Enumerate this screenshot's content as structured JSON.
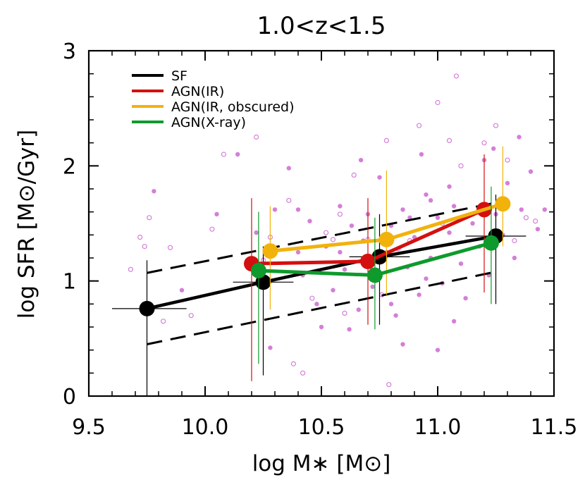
{
  "chart_data": {
    "type": "scatter",
    "title": "1.0<z<1.5",
    "xlabel": "log M∗ [M⊙]",
    "ylabel": "log SFR [M⊙/Gyr]",
    "xlim": [
      9.5,
      11.5
    ],
    "ylim": [
      0,
      3
    ],
    "x_ticks": [
      "9.5",
      "10.0",
      "10.5",
      "11.0",
      "11.5"
    ],
    "y_ticks": [
      "0",
      "1",
      "2",
      "3"
    ],
    "grid": false,
    "legend_position": "top-left",
    "series": [
      {
        "name": "SF",
        "color": "#000000",
        "points": [
          {
            "x": 9.75,
            "y": 0.76,
            "ylo": 0.0,
            "yhi": 1.18,
            "xlo": 9.6,
            "xhi": 9.92
          },
          {
            "x": 10.25,
            "y": 0.99,
            "ylo": 0.18,
            "yhi": 1.3,
            "xlo": 10.12,
            "xhi": 10.38
          },
          {
            "x": 10.75,
            "y": 1.21,
            "ylo": 0.62,
            "yhi": 1.58,
            "xlo": 10.62,
            "xhi": 10.88
          },
          {
            "x": 11.25,
            "y": 1.39,
            "ylo": 0.8,
            "yhi": 1.75,
            "xlo": 11.12,
            "xhi": 11.38
          }
        ]
      },
      {
        "name": "AGN(IR)",
        "color": "#d40f0f",
        "points": [
          {
            "x": 10.2,
            "y": 1.15,
            "ylo": 0.13,
            "yhi": 1.72
          },
          {
            "x": 10.7,
            "y": 1.17,
            "ylo": 0.62,
            "yhi": 1.72
          },
          {
            "x": 11.2,
            "y": 1.62,
            "ylo": 0.9,
            "yhi": 2.1
          }
        ]
      },
      {
        "name": "AGN(IR, obscured)",
        "color": "#f2b20c",
        "points": [
          {
            "x": 10.28,
            "y": 1.26,
            "ylo": 0.75,
            "yhi": 1.65
          },
          {
            "x": 10.78,
            "y": 1.36,
            "ylo": 0.88,
            "yhi": 1.96
          },
          {
            "x": 11.28,
            "y": 1.67,
            "ylo": 1.3,
            "yhi": 2.17
          }
        ]
      },
      {
        "name": "AGN(X-ray)",
        "color": "#0e9a2c",
        "points": [
          {
            "x": 10.23,
            "y": 1.09,
            "ylo": 0.28,
            "yhi": 1.6
          },
          {
            "x": 10.73,
            "y": 1.05,
            "ylo": 0.58,
            "yhi": 1.55
          },
          {
            "x": 11.23,
            "y": 1.33,
            "ylo": 0.8,
            "yhi": 1.82
          }
        ]
      }
    ],
    "dashed_lines": [
      {
        "x": [
          9.75,
          11.25
        ],
        "y": [
          1.07,
          1.68
        ]
      },
      {
        "x": [
          9.75,
          11.25
        ],
        "y": [
          0.45,
          1.08
        ]
      }
    ],
    "background_points_color": "#d47fd8",
    "background_points_filled": [
      [
        9.78,
        1.78
      ],
      [
        9.9,
        0.92
      ],
      [
        10.05,
        1.58
      ],
      [
        10.14,
        2.1
      ],
      [
        10.22,
        1.42
      ],
      [
        10.3,
        1.62
      ],
      [
        10.36,
        1.98
      ],
      [
        10.4,
        1.25
      ],
      [
        10.45,
        1.52
      ],
      [
        10.48,
        0.8
      ],
      [
        10.52,
        1.3
      ],
      [
        10.55,
        0.92
      ],
      [
        10.58,
        1.65
      ],
      [
        10.6,
        1.1
      ],
      [
        10.63,
        1.48
      ],
      [
        10.66,
        0.75
      ],
      [
        10.68,
        1.35
      ],
      [
        10.7,
        1.58
      ],
      [
        10.72,
        0.95
      ],
      [
        10.75,
        1.9
      ],
      [
        10.78,
        1.25
      ],
      [
        10.8,
        1.48
      ],
      [
        10.82,
        0.7
      ],
      [
        10.85,
        1.62
      ],
      [
        10.87,
        1.12
      ],
      [
        10.9,
        1.38
      ],
      [
        10.92,
        0.88
      ],
      [
        10.95,
        1.75
      ],
      [
        10.97,
        1.2
      ],
      [
        11.0,
        1.55
      ],
      [
        11.02,
        0.98
      ],
      [
        11.05,
        1.42
      ],
      [
        11.07,
        1.65
      ],
      [
        11.1,
        1.15
      ],
      [
        11.12,
        0.85
      ],
      [
        11.15,
        1.5
      ],
      [
        11.18,
        1.3
      ],
      [
        11.2,
        2.05
      ],
      [
        11.22,
        1.05
      ],
      [
        11.25,
        1.58
      ],
      [
        11.28,
        1.4
      ],
      [
        11.3,
        1.85
      ],
      [
        11.33,
        1.2
      ],
      [
        11.36,
        1.62
      ],
      [
        11.4,
        1.95
      ],
      [
        11.43,
        1.45
      ],
      [
        11.46,
        1.62
      ],
      [
        11.35,
        2.25
      ],
      [
        11.24,
        2.15
      ],
      [
        10.67,
        2.05
      ],
      [
        10.93,
        2.1
      ],
      [
        10.28,
        0.42
      ],
      [
        10.5,
        0.6
      ],
      [
        10.62,
        0.58
      ],
      [
        10.8,
        0.8
      ],
      [
        10.85,
        0.45
      ],
      [
        11.0,
        0.4
      ],
      [
        11.07,
        0.65
      ],
      [
        10.95,
        1.02
      ],
      [
        10.4,
        1.62
      ],
      [
        10.42,
        1.05
      ],
      [
        10.58,
        1.25
      ],
      [
        10.88,
        1.55
      ],
      [
        11.05,
        1.82
      ],
      [
        10.97,
        1.7
      ]
    ],
    "background_points_open": [
      [
        9.68,
        1.1
      ],
      [
        9.72,
        1.38
      ],
      [
        9.74,
        1.3
      ],
      [
        9.76,
        1.55
      ],
      [
        9.82,
        0.65
      ],
      [
        9.85,
        1.29
      ],
      [
        9.94,
        0.7
      ],
      [
        10.08,
        2.1
      ],
      [
        10.28,
        1.38
      ],
      [
        10.38,
        0.28
      ],
      [
        10.42,
        0.2
      ],
      [
        10.46,
        0.85
      ],
      [
        10.55,
        1.36
      ],
      [
        10.6,
        0.72
      ],
      [
        10.64,
        1.92
      ],
      [
        10.7,
        1.36
      ],
      [
        10.76,
        0.88
      ],
      [
        10.79,
        0.1
      ],
      [
        10.83,
        1.28
      ],
      [
        10.88,
        1.35
      ],
      [
        11.02,
        1.5
      ],
      [
        11.05,
        2.22
      ],
      [
        11.1,
        2.0
      ],
      [
        11.15,
        1.58
      ],
      [
        11.2,
        2.2
      ],
      [
        11.25,
        2.35
      ],
      [
        11.3,
        2.05
      ],
      [
        11.33,
        1.35
      ],
      [
        11.38,
        1.55
      ],
      [
        11.42,
        1.52
      ],
      [
        10.52,
        1.42
      ],
      [
        10.36,
        1.7
      ],
      [
        10.03,
        1.45
      ],
      [
        10.92,
        2.35
      ],
      [
        11.08,
        2.78
      ],
      [
        10.78,
        2.22
      ],
      [
        11.0,
        2.55
      ],
      [
        10.58,
        1.58
      ],
      [
        10.25,
        1.18
      ],
      [
        10.22,
        2.25
      ]
    ]
  }
}
